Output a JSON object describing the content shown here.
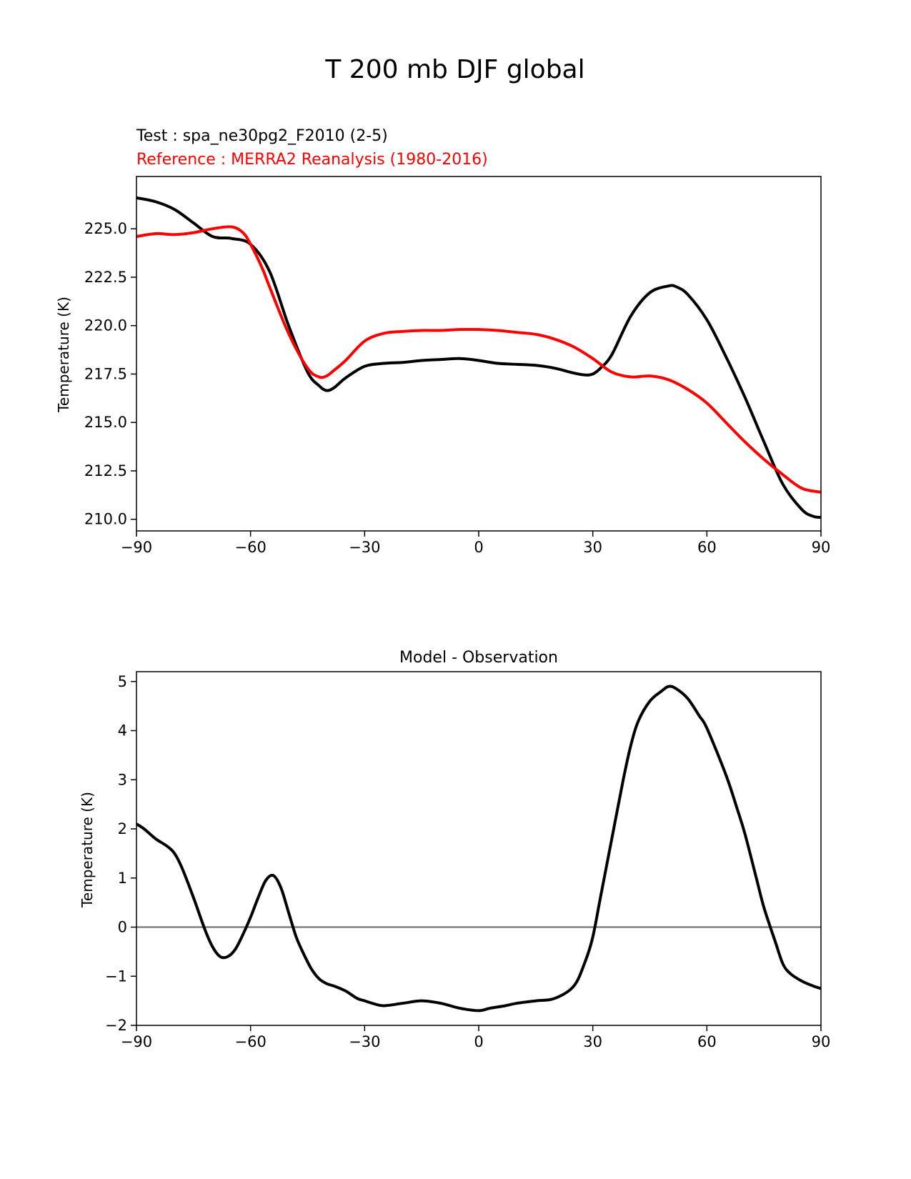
{
  "figure": {
    "title": "T 200 mb DJF global"
  },
  "chart_data": [
    {
      "type": "line",
      "test_label": "Test : spa_ne30pg2_F2010 (2-5)",
      "reference_label": "Reference : MERRA2 Reanalysis (1980-2016)",
      "xlabel": "",
      "ylabel": "Temperature (K)",
      "xlim": [
        -90,
        90
      ],
      "ylim": [
        209.4,
        227.7
      ],
      "xticks": [
        -90,
        -60,
        -30,
        0,
        30,
        60,
        90
      ],
      "xtick_labels": [
        "−90",
        "−60",
        "−30",
        "0",
        "30",
        "60",
        "90"
      ],
      "yticks": [
        210.0,
        212.5,
        215.0,
        217.5,
        220.0,
        222.5,
        225.0
      ],
      "ytick_labels": [
        "210.0",
        "212.5",
        "215.0",
        "217.5",
        "220.0",
        "222.5",
        "225.0"
      ],
      "grid": false,
      "series": [
        {
          "color": "#000000",
          "x": [
            -90,
            -85,
            -80,
            -75,
            -70,
            -65,
            -60,
            -55,
            -50,
            -45,
            -42,
            -40,
            -38,
            -35,
            -30,
            -25,
            -20,
            -15,
            -10,
            -5,
            0,
            5,
            10,
            15,
            20,
            25,
            28,
            30,
            32,
            35,
            40,
            45,
            50,
            52,
            55,
            60,
            65,
            70,
            75,
            80,
            85,
            88,
            90
          ],
          "y": [
            226.6,
            226.4,
            226.0,
            225.3,
            224.6,
            224.5,
            224.2,
            222.8,
            220.0,
            217.6,
            216.9,
            216.65,
            216.8,
            217.3,
            217.9,
            218.05,
            218.1,
            218.2,
            218.25,
            218.3,
            218.2,
            218.05,
            218.0,
            217.95,
            217.8,
            217.55,
            217.45,
            217.5,
            217.8,
            218.5,
            220.5,
            221.7,
            222.05,
            222.0,
            221.6,
            220.3,
            218.4,
            216.3,
            214.0,
            211.8,
            210.5,
            210.15,
            210.1
          ]
        },
        {
          "color": "#ff0000",
          "x": [
            -90,
            -85,
            -80,
            -75,
            -70,
            -65,
            -62,
            -60,
            -57,
            -55,
            -50,
            -45,
            -42,
            -40,
            -38,
            -35,
            -30,
            -25,
            -20,
            -15,
            -10,
            -5,
            0,
            5,
            10,
            15,
            20,
            25,
            30,
            35,
            40,
            45,
            50,
            55,
            60,
            65,
            70,
            75,
            80,
            85,
            90
          ],
          "y": [
            224.6,
            224.75,
            224.7,
            224.8,
            225.0,
            225.1,
            224.8,
            224.2,
            223.0,
            222.0,
            219.6,
            217.8,
            217.35,
            217.4,
            217.7,
            218.2,
            219.2,
            219.6,
            219.7,
            219.75,
            219.75,
            219.8,
            219.8,
            219.75,
            219.65,
            219.55,
            219.3,
            218.9,
            218.3,
            217.6,
            217.35,
            217.4,
            217.2,
            216.7,
            216.0,
            215.0,
            214.0,
            213.1,
            212.3,
            211.6,
            211.4
          ]
        }
      ]
    },
    {
      "type": "line",
      "title": "Model - Observation",
      "xlabel": "",
      "ylabel": "Temperature (K)",
      "xlim": [
        -90,
        90
      ],
      "ylim": [
        -2,
        5.2
      ],
      "xticks": [
        -90,
        -60,
        -30,
        0,
        30,
        60,
        90
      ],
      "xtick_labels": [
        "−90",
        "−60",
        "−30",
        "0",
        "30",
        "60",
        "90"
      ],
      "yticks": [
        -2,
        -1,
        0,
        1,
        2,
        3,
        4,
        5
      ],
      "ytick_labels": [
        "−2",
        "−1",
        "0",
        "1",
        "2",
        "3",
        "4",
        "5"
      ],
      "grid": false,
      "zero_line_color": "#808080",
      "series": [
        {
          "color": "#000000",
          "x": [
            -90,
            -88,
            -85,
            -82,
            -80,
            -78,
            -75,
            -72,
            -70,
            -68,
            -66,
            -64,
            -62,
            -60,
            -58,
            -56,
            -54,
            -52,
            -50,
            -48,
            -46,
            -44,
            -42,
            -40,
            -38,
            -35,
            -32,
            -30,
            -28,
            -25,
            -20,
            -15,
            -10,
            -5,
            0,
            3,
            7,
            10,
            15,
            20,
            25,
            28,
            30,
            32,
            35,
            38,
            40,
            42,
            45,
            48,
            50,
            52,
            55,
            58,
            60,
            65,
            68,
            70,
            73,
            75,
            78,
            80,
            82,
            85,
            88,
            90
          ],
          "y": [
            2.1,
            2.0,
            1.8,
            1.65,
            1.5,
            1.2,
            0.6,
            -0.05,
            -0.4,
            -0.6,
            -0.6,
            -0.45,
            -0.15,
            0.2,
            0.6,
            0.95,
            1.05,
            0.8,
            0.3,
            -0.2,
            -0.55,
            -0.85,
            -1.05,
            -1.15,
            -1.2,
            -1.3,
            -1.45,
            -1.5,
            -1.55,
            -1.6,
            -1.55,
            -1.5,
            -1.55,
            -1.65,
            -1.7,
            -1.65,
            -1.6,
            -1.55,
            -1.5,
            -1.45,
            -1.2,
            -0.7,
            -0.2,
            0.6,
            1.8,
            3.0,
            3.7,
            4.2,
            4.6,
            4.8,
            4.9,
            4.85,
            4.65,
            4.3,
            4.05,
            3.1,
            2.4,
            1.9,
            1.0,
            0.4,
            -0.3,
            -0.75,
            -0.95,
            -1.1,
            -1.2,
            -1.25
          ]
        }
      ]
    }
  ]
}
